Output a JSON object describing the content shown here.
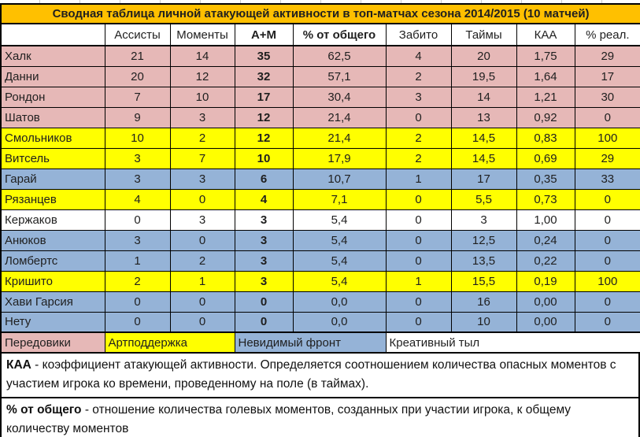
{
  "colors": {
    "title_bg": "#FFC000",
    "forwards": "#E6B8B7",
    "artillery": "#FFFF00",
    "invisible_front": "#95B3D7",
    "creative_rear": "#FFFFFF",
    "border": "#000000",
    "text": "#1F1F1F"
  },
  "chart_data": {
    "type": "table",
    "title": "Сводная таблица личной атакующей активности в топ-матчах сезона 2014/2015 (10 матчей)",
    "columns": [
      "",
      "Ассисты",
      "Моменты",
      "А+М",
      "% от общего",
      "Забито",
      "Таймы",
      "КАА",
      "% реал."
    ],
    "bold_headers": [
      "А+М",
      "% от общего"
    ],
    "bold_value_columns": [
      "А+М"
    ],
    "rows": [
      {
        "name": "Халк",
        "group": "forwards",
        "values": [
          "21",
          "14",
          "35",
          "62,5",
          "4",
          "20",
          "1,75",
          "29"
        ]
      },
      {
        "name": "Данни",
        "group": "forwards",
        "values": [
          "20",
          "12",
          "32",
          "57,1",
          "2",
          "19,5",
          "1,64",
          "17"
        ]
      },
      {
        "name": "Рондон",
        "group": "forwards",
        "values": [
          "7",
          "10",
          "17",
          "30,4",
          "3",
          "14",
          "1,21",
          "30"
        ]
      },
      {
        "name": "Шатов",
        "group": "forwards",
        "values": [
          "9",
          "3",
          "12",
          "21,4",
          "0",
          "13",
          "0,92",
          "0"
        ]
      },
      {
        "name": "Смольников",
        "group": "artillery",
        "values": [
          "10",
          "2",
          "12",
          "21,4",
          "2",
          "14,5",
          "0,83",
          "100"
        ]
      },
      {
        "name": "Витсель",
        "group": "artillery",
        "values": [
          "3",
          "7",
          "10",
          "17,9",
          "2",
          "14,5",
          "0,69",
          "29"
        ]
      },
      {
        "name": "Гарай",
        "group": "invisible_front",
        "values": [
          "3",
          "3",
          "6",
          "10,7",
          "1",
          "17",
          "0,35",
          "33"
        ]
      },
      {
        "name": "Рязанцев",
        "group": "artillery",
        "values": [
          "4",
          "0",
          "4",
          "7,1",
          "0",
          "5,5",
          "0,73",
          "0"
        ]
      },
      {
        "name": "Кержаков",
        "group": "creative_rear",
        "values": [
          "0",
          "3",
          "3",
          "5,4",
          "0",
          "3",
          "1,00",
          "0"
        ]
      },
      {
        "name": "Анюков",
        "group": "invisible_front",
        "values": [
          "3",
          "0",
          "3",
          "5,4",
          "0",
          "12,5",
          "0,24",
          "0"
        ]
      },
      {
        "name": "Ломбертс",
        "group": "invisible_front",
        "values": [
          "1",
          "2",
          "3",
          "5,4",
          "0",
          "13,5",
          "0,22",
          "0"
        ]
      },
      {
        "name": "Кришито",
        "group": "artillery",
        "values": [
          "2",
          "1",
          "3",
          "5,4",
          "1",
          "15,5",
          "0,19",
          "100"
        ]
      },
      {
        "name": "Хави Гарсия",
        "group": "invisible_front",
        "values": [
          "0",
          "0",
          "0",
          "0,0",
          "0",
          "16",
          "0,00",
          "0"
        ]
      },
      {
        "name": "Нету",
        "group": "invisible_front",
        "values": [
          "0",
          "0",
          "0",
          "0,0",
          "0",
          "10",
          "0,00",
          "0"
        ]
      }
    ]
  },
  "legend": [
    {
      "label": "Передовики",
      "group": "forwards",
      "span": 1
    },
    {
      "label": "Артподдержка",
      "group": "artillery",
      "span": 2
    },
    {
      "label": "Невидимый фронт",
      "group": "invisible_front",
      "span": 2
    },
    {
      "label": "Креативный тыл",
      "group": "creative_rear",
      "span": 4
    }
  ],
  "notes": [
    {
      "term": "КАА",
      "text": "- коэффициент атакующей активности. Определяется соотношением количества опасных моментов с участием игрока ко времени, проведенному на поле (в таймах)."
    },
    {
      "term": "% от общего",
      "text": "- отношение количества голевых моментов, созданных при участии игрока, к общему количеству моментов"
    }
  ]
}
